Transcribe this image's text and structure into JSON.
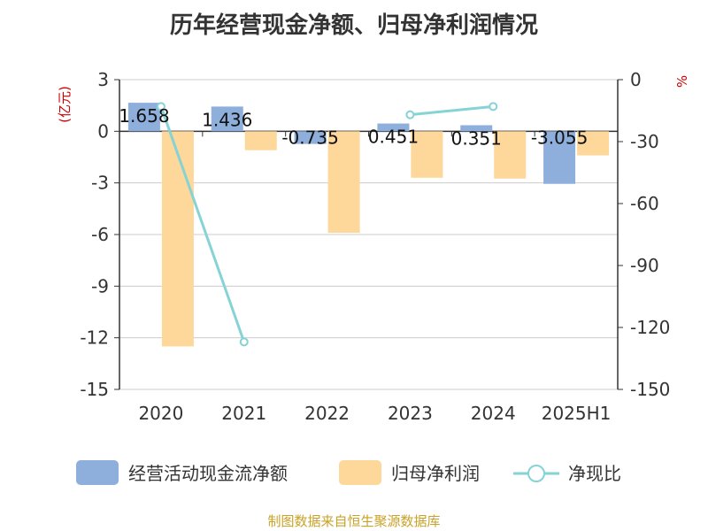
{
  "title": "历年经营现金净额、归母净利润情况",
  "source": "制图数据来自恒生聚源数据库",
  "colors": {
    "cash": "#8eaedc",
    "profit": "#fed79a",
    "ratio": "#86d3d6",
    "unit": "#cc0000"
  },
  "chart_data": {
    "type": "bar",
    "categories": [
      "2020",
      "2021",
      "2022",
      "2023",
      "2024",
      "2025H1"
    ],
    "left_axis": {
      "unit": "(亿元)",
      "ylim": [
        -15,
        3
      ],
      "ticks": [
        3,
        0,
        -3,
        -6,
        -9,
        -12,
        -15
      ]
    },
    "right_axis": {
      "unit": "%",
      "ylim": [
        -150,
        0
      ],
      "ticks": [
        0,
        -30,
        -60,
        -90,
        -120,
        -150
      ]
    },
    "series": [
      {
        "name": "经营活动现金流净额",
        "kind": "bar",
        "axis": "left",
        "values": [
          1.658,
          1.436,
          -0.735,
          0.451,
          0.351,
          -3.055
        ],
        "labels": [
          "1.658",
          "1.436",
          "-0.735",
          "0.451",
          "0.351",
          "-3.055"
        ]
      },
      {
        "name": "归母净利润",
        "kind": "bar",
        "axis": "left",
        "values": [
          -12.5,
          -1.1,
          -5.9,
          -2.7,
          -2.75,
          -1.4
        ]
      },
      {
        "name": "净现比",
        "kind": "line",
        "axis": "right",
        "values": [
          -13,
          -127,
          null,
          -17,
          -13,
          null
        ]
      }
    ],
    "grid": true,
    "legend_position": "bottom"
  }
}
